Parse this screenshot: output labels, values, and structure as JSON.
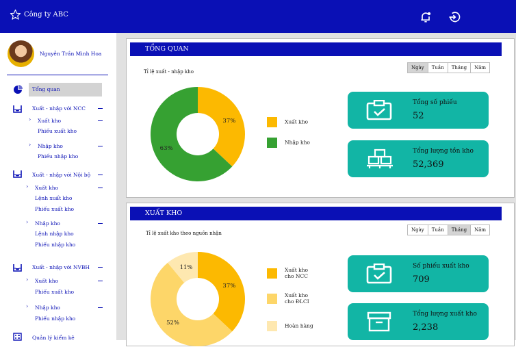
{
  "header": {
    "company": "Công ty ABC",
    "bg_color": "#0a10b5",
    "icons": [
      "star-icon",
      "notification-bell-icon",
      "logout-icon"
    ]
  },
  "user": {
    "name": "Nguyễn Trần Minh Hoa"
  },
  "sidebar": {
    "items": [
      {
        "label": "Tổng quan",
        "icon": "pie-chart-icon",
        "active": true
      },
      {
        "label": "Xuất - nhập với NCC",
        "icon": "inbox-icon"
      },
      {
        "label": "Xuất kho"
      },
      {
        "label": "Phiếu xuất kho"
      },
      {
        "label": "Nhập kho"
      },
      {
        "label": "Phiếu nhập kho"
      },
      {
        "label": "Xuất - nhập với Nội bộ",
        "icon": "inbox-icon"
      },
      {
        "label": "Xuất kho"
      },
      {
        "label": "Lệnh xuất kho"
      },
      {
        "label": "Phiếu xuất kho"
      },
      {
        "label": "Nhập kho"
      },
      {
        "label": "Lệnh nhập kho"
      },
      {
        "label": "Phiếu nhập kho"
      },
      {
        "label": "Xuất - nhập với NVBH",
        "icon": "inbox-icon"
      },
      {
        "label": "Xuất kho"
      },
      {
        "label": "Phiếu xuất kho"
      },
      {
        "label": "Nhập kho"
      },
      {
        "label": "Phiếu nhập kho"
      },
      {
        "label": "Quản lý kiểm kê",
        "icon": "checklist-icon"
      }
    ]
  },
  "periods": [
    "Ngày",
    "Tuần",
    "Tháng",
    "Năm"
  ],
  "overview": {
    "title": "TỔNG QUAN",
    "chart_title": "Tỉ lệ xuất - nhập kho",
    "selected_period": "Ngày",
    "stats": [
      {
        "label": "Tổng số phiếu",
        "value": "52",
        "icon": "clipboard-check-icon"
      },
      {
        "label": "Tổng lượng tồn kho",
        "value": "52,369",
        "icon": "pallet-boxes-icon"
      }
    ]
  },
  "export": {
    "title": "XUẤT KHO",
    "chart_title": "Tỉ lệ xuất kho theo nguồn nhận",
    "selected_period": "Tháng",
    "stats": [
      {
        "label": "Số phiếu xuất kho",
        "value": "709",
        "icon": "clipboard-check-icon"
      },
      {
        "label": "Tổng lượng xuất kho",
        "value": "2,238",
        "icon": "archive-box-icon"
      }
    ]
  },
  "chart_data": [
    {
      "type": "pie",
      "donut": true,
      "categories": [
        "Xuất kho",
        "Nhập kho"
      ],
      "values": [
        37,
        63
      ],
      "data_labels": [
        "37%",
        "63%"
      ],
      "colors": [
        "#fcb901",
        "#36a132"
      ],
      "legend": "right"
    },
    {
      "type": "pie",
      "donut": true,
      "categories": [
        "Xuất kho cho NCC",
        "Xuất kho cho ĐLCI",
        "Hoàn hàng"
      ],
      "values": [
        37,
        52,
        11
      ],
      "data_labels": [
        "37%",
        "52%",
        "11%"
      ],
      "colors": [
        "#fcb901",
        "#fdd669",
        "#fee8b0"
      ],
      "legend": "right"
    }
  ]
}
